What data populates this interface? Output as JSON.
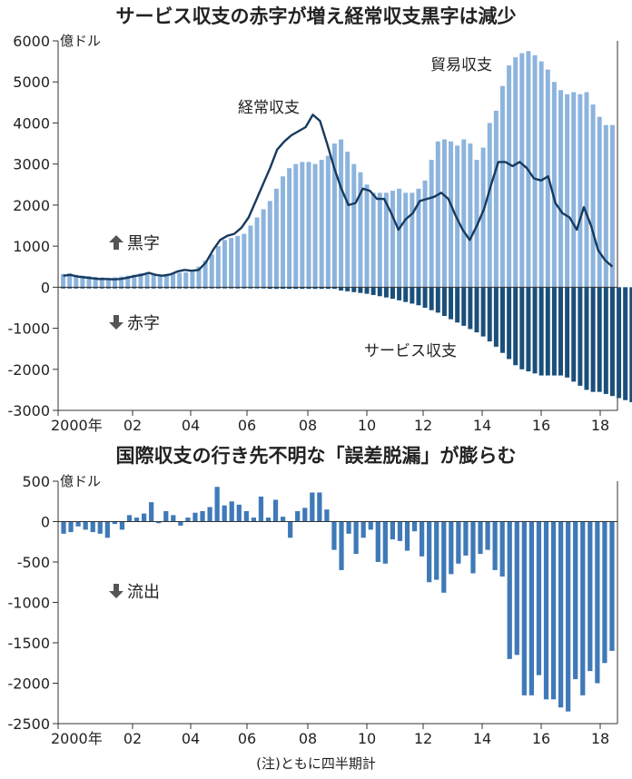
{
  "chart_data": [
    {
      "type": "bar",
      "title": "サービス収支の赤字が増え経常収支黒字は減少",
      "unit": "億ドル",
      "ylim": [
        -3000,
        6000
      ],
      "yticks": [
        6000,
        5000,
        4000,
        3000,
        2000,
        1000,
        0,
        -1000,
        -2000,
        -3000
      ],
      "xticks": [
        "2000年",
        "02",
        "04",
        "06",
        "08",
        "10",
        "12",
        "14",
        "16",
        "18"
      ],
      "surplus_label": "黒字",
      "deficit_label": "赤字",
      "surplus_arrow": "up-arrow-icon",
      "deficit_arrow": "down-arrow-icon",
      "colors": {
        "goods": "#8db4dd",
        "services": "#1a4f7a",
        "current": "#173a5e"
      },
      "series": [
        {
          "name": "貿易収支",
          "type": "bar",
          "values": [
            320,
            340,
            300,
            280,
            270,
            250,
            240,
            230,
            240,
            260,
            280,
            300,
            340,
            320,
            300,
            300,
            320,
            340,
            350,
            360,
            380,
            500,
            650,
            800,
            1000,
            1150,
            1200,
            1250,
            1300,
            1500,
            1700,
            1900,
            2100,
            2400,
            2700,
            2900,
            3000,
            3050,
            3050,
            3000,
            3100,
            3200,
            3500,
            3600,
            3300,
            3000,
            2800,
            2500,
            2300,
            2300,
            2300,
            2350,
            2400,
            2300,
            2300,
            2400,
            2600,
            3100,
            3550,
            3600,
            3550,
            3450,
            3600,
            3500,
            3100,
            3400,
            4000,
            4300,
            4900,
            5400,
            5600,
            5700,
            5750,
            5650,
            5500,
            5300,
            5000,
            4800,
            4700,
            4750,
            4700,
            4750,
            4450,
            4150,
            3950,
            3950
          ]
        },
        {
          "name": "サービス収支",
          "type": "bar",
          "values": [
            -30,
            -30,
            -30,
            -30,
            -30,
            -30,
            -30,
            -30,
            -30,
            -30,
            -30,
            -30,
            -30,
            -30,
            -30,
            -30,
            -30,
            -30,
            -30,
            -30,
            -30,
            -30,
            -30,
            -30,
            -30,
            -30,
            -30,
            -30,
            -30,
            -30,
            -30,
            -30,
            -40,
            -40,
            -40,
            -40,
            -40,
            -40,
            -40,
            -40,
            -40,
            -40,
            -40,
            -80,
            -100,
            -120,
            -140,
            -160,
            -190,
            -220,
            -250,
            -280,
            -320,
            -360,
            -400,
            -440,
            -500,
            -560,
            -620,
            -700,
            -780,
            -860,
            -940,
            -1020,
            -1100,
            -1200,
            -1320,
            -1450,
            -1600,
            -1750,
            -1900,
            -2000,
            -2050,
            -2100,
            -2150,
            -2150,
            -2150,
            -2150,
            -2200,
            -2300,
            -2400,
            -2500,
            -2550,
            -2550,
            -2600,
            -2650,
            -2700,
            -2750,
            -2800,
            -2850
          ]
        },
        {
          "name": "経常収支",
          "type": "line",
          "values": [
            280,
            300,
            260,
            240,
            220,
            200,
            200,
            190,
            200,
            230,
            270,
            300,
            350,
            300,
            280,
            310,
            380,
            420,
            400,
            420,
            600,
            900,
            1150,
            1250,
            1300,
            1450,
            1700,
            2100,
            2500,
            2900,
            3350,
            3550,
            3700,
            3800,
            3900,
            4200,
            4050,
            3500,
            2900,
            2400,
            2000,
            2050,
            2400,
            2350,
            2150,
            2150,
            1800,
            1400,
            1650,
            1800,
            2100,
            2150,
            2200,
            2300,
            2150,
            1750,
            1400,
            1150,
            1500,
            1900,
            2500,
            3050,
            3050,
            2950,
            3050,
            2900,
            2650,
            2600,
            2700,
            2050,
            1800,
            1700,
            1400,
            1950,
            1500,
            900,
            650,
            500
          ]
        }
      ],
      "annotations": [
        "経常収支",
        "貿易収支",
        "サービス収支"
      ]
    },
    {
      "type": "bar",
      "title": "国際収支の行き先不明な「誤差脱漏」が膨らむ",
      "unit": "億ドル",
      "ylim": [
        -2500,
        500
      ],
      "yticks": [
        500,
        0,
        -500,
        -1000,
        -1500,
        -2000,
        -2500
      ],
      "xticks": [
        "2000年",
        "02",
        "04",
        "06",
        "08",
        "10",
        "12",
        "14",
        "16",
        "18"
      ],
      "outflow_label": "流出",
      "outflow_arrow": "down-arrow-icon",
      "colors": {
        "bars": "#3f79b8"
      },
      "series": [
        {
          "name": "誤差脱漏",
          "values": [
            -150,
            -130,
            -60,
            -100,
            -130,
            -150,
            -200,
            -30,
            -100,
            80,
            50,
            100,
            240,
            -20,
            130,
            80,
            -50,
            50,
            110,
            130,
            180,
            430,
            200,
            250,
            210,
            130,
            50,
            310,
            50,
            270,
            60,
            -200,
            130,
            170,
            360,
            360,
            150,
            -350,
            -600,
            -150,
            -400,
            -200,
            -100,
            -500,
            -520,
            -220,
            -240,
            -360,
            -120,
            -430,
            -750,
            -720,
            -880,
            -650,
            -520,
            -420,
            -640,
            -400,
            -350,
            -600,
            -680,
            -1700,
            -1650,
            -2150,
            -2150,
            -1900,
            -2200,
            -2200,
            -2300,
            -2350,
            -1950,
            -2150,
            -1850,
            -2000,
            -1750,
            -1600
          ]
        }
      ]
    }
  ],
  "note": "(注)ともに四半期計"
}
